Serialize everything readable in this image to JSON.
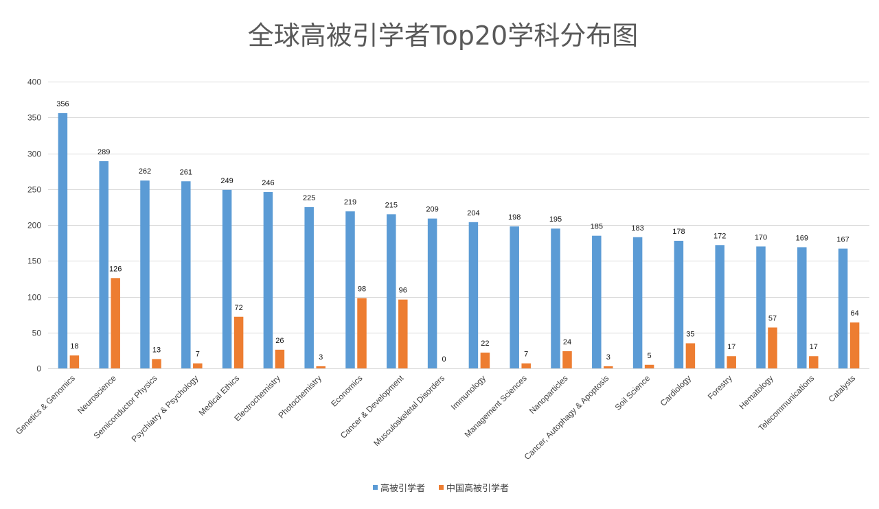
{
  "chart_data": {
    "type": "bar",
    "title": "全球高被引学者Top20学科分布图",
    "xlabel": "",
    "ylabel": "",
    "ylim": [
      0,
      400
    ],
    "yticks": [
      0,
      50,
      100,
      150,
      200,
      250,
      300,
      350,
      400
    ],
    "grid": true,
    "legend_position": "bottom",
    "categories": [
      "Genetics & Genomics",
      "Neuroscience",
      "Semiconductor Physics",
      "Psychiatry & Psychology",
      "Medical Ethics",
      "Electrochemistry",
      "Photochemistry",
      "Economics",
      "Cancer & Development",
      "Musculoskeletal Disorders",
      "Immunology",
      "Management Sciences",
      "Nanoparticles",
      "Cancer, Autophagy & Apoptosis",
      "Soil Science",
      "Cardiology",
      "Forestry",
      "Hematology",
      "Telecommunications",
      "Catalysts"
    ],
    "series": [
      {
        "name": "高被引学者",
        "color": "#5b9bd5",
        "values": [
          356,
          289,
          262,
          261,
          249,
          246,
          225,
          219,
          215,
          209,
          204,
          198,
          195,
          185,
          183,
          178,
          172,
          170,
          169,
          167
        ]
      },
      {
        "name": "中国高被引学者",
        "color": "#ed7d31",
        "values": [
          18,
          126,
          13,
          7,
          72,
          26,
          3,
          98,
          96,
          0,
          22,
          7,
          24,
          3,
          5,
          35,
          17,
          57,
          17,
          64
        ]
      }
    ]
  }
}
